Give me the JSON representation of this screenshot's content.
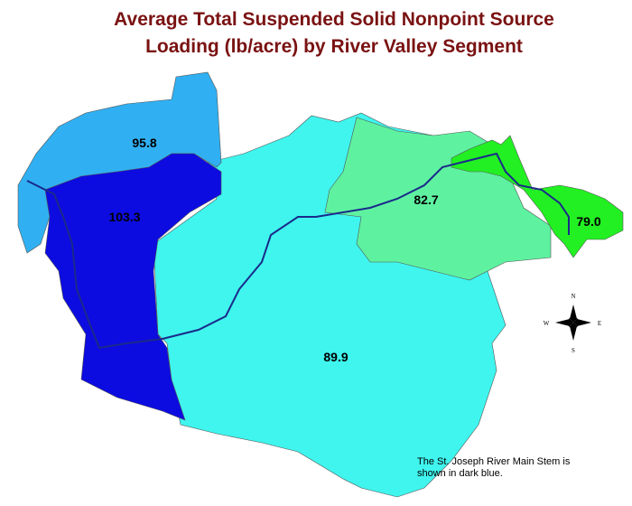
{
  "map": {
    "title": [
      "Average Total Suspended Solid Nonpoint Source",
      "Loading (lb/acre) by River Valley Segment"
    ],
    "regions": [
      {
        "label": "89.9",
        "color": "#3ff5ee"
      },
      {
        "label": "82.7",
        "color": "#5ef2a0"
      },
      {
        "label": "79.0",
        "color": "#22f022"
      },
      {
        "label": "95.8",
        "color": "#30b0f2"
      },
      {
        "label": "103.3",
        "color": "#0c0ce0"
      }
    ],
    "compass": [
      "N",
      "S",
      "E",
      "W"
    ],
    "note": [
      "The St. Joseph River Main Stem is",
      "shown in dark blue."
    ]
  }
}
